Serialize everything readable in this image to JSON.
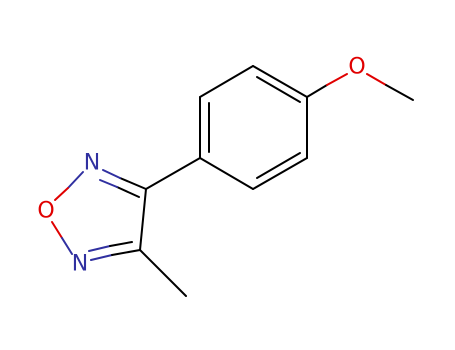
{
  "atoms": [
    {
      "label": "O"
    },
    {
      "label": "N"
    },
    {
      "label": "O"
    },
    {
      "label": "N"
    }
  ]
}
